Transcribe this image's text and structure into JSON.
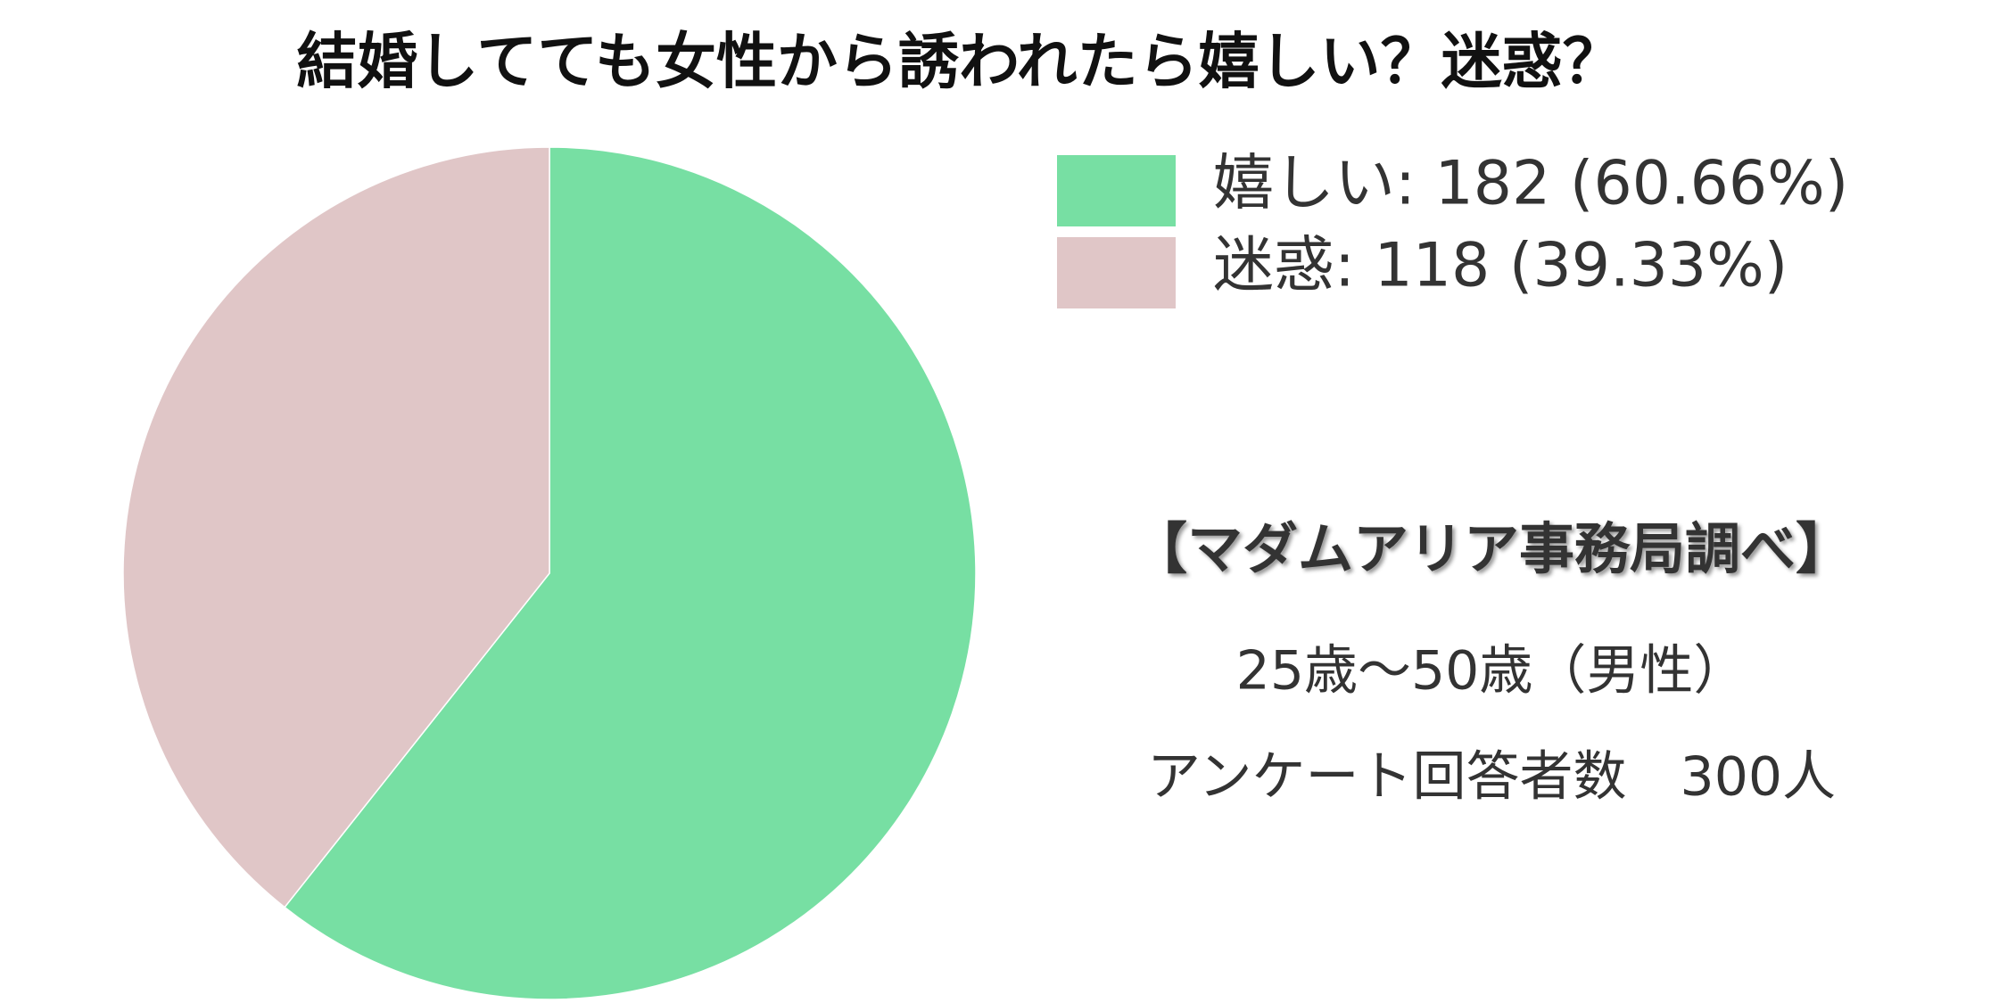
{
  "chart_data": {
    "type": "pie",
    "title": "結婚してても女性から誘われたら嬉しい？迷惑？",
    "values": [
      182,
      118
    ],
    "value_labels": [
      "嬉しい: 182 (60.66%)",
      "迷惑: 118 (39.33%)"
    ],
    "colors": [
      "#77dfa3",
      "#e0c6c7"
    ],
    "annotations": [
      "【マダムアリア事務局調べ】",
      "25歳～50歳（男性）",
      "アンケート回答者数　300人"
    ]
  }
}
